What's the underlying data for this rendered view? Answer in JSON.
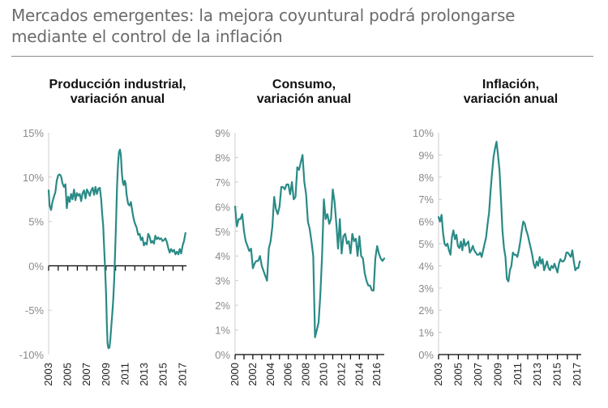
{
  "page": {
    "title": "Mercados emergentes: la mejora coyuntural podrá prolongarse mediante el control de la inflación"
  },
  "colors": {
    "line": "#2a8a86",
    "grid": "#cccccc",
    "axis": "#000000",
    "tick_label": "#8a8a8a"
  },
  "chart_data": [
    {
      "type": "line",
      "title": "Producción industrial,\nvariación anual",
      "xlabel": "",
      "ylabel": "",
      "x_ticks": [
        "2003",
        "2005",
        "2007",
        "2009",
        "2011",
        "2013",
        "2015",
        "2017"
      ],
      "y_ticks": [
        "15%",
        "10%",
        "5%",
        "0%",
        "-5%",
        "-10%"
      ],
      "ylim": [
        -10,
        15
      ],
      "xlim": [
        2003.0,
        2017.4
      ],
      "grid": false,
      "series": [
        {
          "x": [
            2003.0,
            2003.1,
            2003.25,
            2003.4,
            2003.55,
            2003.7,
            2003.85,
            2004.0,
            2004.15,
            2004.3,
            2004.45,
            2004.6,
            2004.75,
            2004.9,
            2005.05,
            2005.2,
            2005.35,
            2005.5,
            2005.65,
            2005.8,
            2005.95,
            2006.1,
            2006.25,
            2006.4,
            2006.55,
            2006.7,
            2006.85,
            2007.0,
            2007.15,
            2007.3,
            2007.45,
            2007.6,
            2007.75,
            2007.9,
            2008.05,
            2008.2,
            2008.35,
            2008.5,
            2008.6,
            2008.7,
            2008.8,
            2008.9,
            2009.0,
            2009.08,
            2009.16,
            2009.25,
            2009.35,
            2009.45,
            2009.55,
            2009.65,
            2009.75,
            2009.85,
            2009.95,
            2010.05,
            2010.15,
            2010.25,
            2010.35,
            2010.45,
            2010.55,
            2010.65,
            2010.75,
            2010.85,
            2010.95,
            2011.05,
            2011.15,
            2011.3,
            2011.45,
            2011.6,
            2011.75,
            2011.9,
            2012.05,
            2012.2,
            2012.35,
            2012.5,
            2012.65,
            2012.8,
            2012.95,
            2013.1,
            2013.25,
            2013.4,
            2013.55,
            2013.7,
            2013.85,
            2014.0,
            2014.15,
            2014.3,
            2014.45,
            2014.6,
            2014.75,
            2014.9,
            2015.05,
            2015.2,
            2015.35,
            2015.5,
            2015.65,
            2015.8,
            2015.95,
            2016.1,
            2016.25,
            2016.4,
            2016.55,
            2016.7,
            2016.85,
            2017.0,
            2017.15,
            2017.3
          ],
          "y": [
            8.5,
            6.8,
            6.3,
            7.2,
            7.8,
            8.3,
            9.6,
            10.2,
            10.3,
            10.1,
            9.3,
            8.9,
            9.2,
            6.5,
            7.8,
            7.2,
            8.1,
            7.5,
            8.6,
            7.4,
            8.2,
            7.9,
            8.1,
            7.3,
            8.2,
            8.5,
            7.6,
            8.6,
            8.3,
            7.9,
            8.5,
            8.8,
            8.0,
            8.9,
            8.1,
            8.7,
            8.8,
            7.4,
            5.8,
            4.5,
            2.0,
            -0.5,
            -3.0,
            -6.5,
            -8.8,
            -9.3,
            -9.2,
            -8.3,
            -6.8,
            -5.4,
            -3.8,
            -1.5,
            1.5,
            5.0,
            9.0,
            11.5,
            12.8,
            13.1,
            12.5,
            10.5,
            9.4,
            9.1,
            9.6,
            9.3,
            8.0,
            7.0,
            6.8,
            7.2,
            6.1,
            5.2,
            4.7,
            4.3,
            3.5,
            3.6,
            2.9,
            3.2,
            2.3,
            2.6,
            2.4,
            3.6,
            3.3,
            2.6,
            2.8,
            2.5,
            3.4,
            3.0,
            3.2,
            3.0,
            3.1,
            2.8,
            2.9,
            3.1,
            2.7,
            2.0,
            1.5,
            1.9,
            1.6,
            1.8,
            1.3,
            1.6,
            1.3,
            1.9,
            1.4,
            2.3,
            2.8,
            3.7
          ]
        }
      ]
    },
    {
      "type": "line",
      "title": "Consumo,\nvariación anual",
      "xlabel": "",
      "ylabel": "",
      "x_ticks": [
        "2000",
        "2002",
        "2004",
        "2006",
        "2008",
        "2010",
        "2012",
        "2014",
        "2016"
      ],
      "y_ticks": [
        "9%",
        "8%",
        "7%",
        "6%",
        "5%",
        "4%",
        "3%",
        "2%",
        "1%",
        "0%"
      ],
      "ylim": [
        0,
        9
      ],
      "xlim": [
        2000.0,
        2016.8
      ],
      "grid": false,
      "series": [
        {
          "x": [
            2000.0,
            2000.2,
            2000.4,
            2000.6,
            2000.8,
            2001.0,
            2001.2,
            2001.4,
            2001.6,
            2001.8,
            2002.0,
            2002.2,
            2002.4,
            2002.6,
            2002.8,
            2003.0,
            2003.2,
            2003.4,
            2003.6,
            2003.8,
            2004.0,
            2004.2,
            2004.4,
            2004.6,
            2004.8,
            2005.0,
            2005.2,
            2005.4,
            2005.6,
            2005.8,
            2006.0,
            2006.2,
            2006.4,
            2006.6,
            2006.8,
            2007.0,
            2007.2,
            2007.4,
            2007.6,
            2007.8,
            2008.0,
            2008.2,
            2008.4,
            2008.6,
            2008.8,
            2009.0,
            2009.2,
            2009.4,
            2009.6,
            2009.8,
            2010.0,
            2010.2,
            2010.4,
            2010.6,
            2010.8,
            2011.0,
            2011.2,
            2011.4,
            2011.6,
            2011.8,
            2012.0,
            2012.2,
            2012.4,
            2012.6,
            2012.8,
            2013.0,
            2013.2,
            2013.4,
            2013.6,
            2013.8,
            2014.0,
            2014.2,
            2014.4,
            2014.6,
            2014.8,
            2015.0,
            2015.2,
            2015.4,
            2015.6,
            2015.8,
            2016.0,
            2016.2,
            2016.4,
            2016.6,
            2016.8
          ],
          "y": [
            6.0,
            5.2,
            5.5,
            5.5,
            5.7,
            5.0,
            4.6,
            4.4,
            4.2,
            4.3,
            3.5,
            3.7,
            3.8,
            3.8,
            4.0,
            3.6,
            3.4,
            3.2,
            3.0,
            4.3,
            4.6,
            5.2,
            6.4,
            5.9,
            5.7,
            6.0,
            6.8,
            6.8,
            6.7,
            6.9,
            6.9,
            6.5,
            7.0,
            6.3,
            6.4,
            7.6,
            7.5,
            7.8,
            8.1,
            7.0,
            6.5,
            5.4,
            5.1,
            4.6,
            4.0,
            0.7,
            1.0,
            1.3,
            2.4,
            4.0,
            6.3,
            5.5,
            5.7,
            5.3,
            5.5,
            6.7,
            6.2,
            5.3,
            4.3,
            5.5,
            4.1,
            4.8,
            4.9,
            4.5,
            4.6,
            4.1,
            4.9,
            4.6,
            4.7,
            4.0,
            4.8,
            4.0,
            3.9,
            3.3,
            3.0,
            2.8,
            2.8,
            2.6,
            2.6,
            3.9,
            4.4,
            4.1,
            3.9,
            3.8,
            3.9
          ]
        }
      ]
    },
    {
      "type": "line",
      "title": "Inflación,\nvariación anual",
      "xlabel": "",
      "ylabel": "",
      "x_ticks": [
        "2003",
        "2005",
        "2007",
        "2009",
        "2011",
        "2013",
        "2015",
        "2017"
      ],
      "y_ticks": [
        "10%",
        "9%",
        "8%",
        "7%",
        "6%",
        "5%",
        "4%",
        "3%",
        "2%",
        "1%",
        "0%"
      ],
      "ylim": [
        0,
        10
      ],
      "xlim": [
        2003.0,
        2017.4
      ],
      "grid": false,
      "series": [
        {
          "x": [
            2003.0,
            2003.15,
            2003.3,
            2003.45,
            2003.6,
            2003.75,
            2003.9,
            2004.05,
            2004.2,
            2004.35,
            2004.5,
            2004.65,
            2004.8,
            2004.95,
            2005.1,
            2005.25,
            2005.4,
            2005.55,
            2005.7,
            2005.85,
            2006.0,
            2006.15,
            2006.3,
            2006.45,
            2006.6,
            2006.75,
            2006.9,
            2007.05,
            2007.2,
            2007.35,
            2007.5,
            2007.65,
            2007.8,
            2007.95,
            2008.1,
            2008.25,
            2008.4,
            2008.55,
            2008.7,
            2008.85,
            2009.0,
            2009.15,
            2009.3,
            2009.45,
            2009.6,
            2009.75,
            2009.9,
            2010.05,
            2010.2,
            2010.35,
            2010.5,
            2010.65,
            2010.8,
            2010.95,
            2011.1,
            2011.25,
            2011.4,
            2011.55,
            2011.7,
            2011.85,
            2012.0,
            2012.15,
            2012.3,
            2012.45,
            2012.6,
            2012.75,
            2012.9,
            2013.05,
            2013.2,
            2013.35,
            2013.5,
            2013.65,
            2013.8,
            2013.95,
            2014.1,
            2014.25,
            2014.4,
            2014.55,
            2014.7,
            2014.85,
            2015.0,
            2015.15,
            2015.3,
            2015.45,
            2015.6,
            2015.75,
            2015.9,
            2016.05,
            2016.2,
            2016.35,
            2016.5,
            2016.65,
            2016.8,
            2016.95,
            2017.1,
            2017.25
          ],
          "y": [
            6.2,
            6.0,
            6.3,
            5.5,
            5.0,
            4.9,
            5.0,
            4.7,
            4.5,
            5.3,
            5.6,
            5.2,
            5.4,
            4.9,
            4.8,
            5.1,
            4.7,
            5.2,
            4.9,
            5.0,
            5.1,
            4.6,
            4.7,
            4.9,
            4.7,
            4.6,
            4.5,
            4.5,
            4.6,
            4.4,
            4.7,
            5.0,
            5.3,
            5.9,
            6.4,
            7.4,
            8.2,
            8.9,
            9.3,
            9.6,
            9.0,
            8.3,
            7.0,
            5.6,
            4.8,
            4.4,
            3.4,
            3.3,
            3.8,
            4.0,
            4.6,
            4.5,
            4.5,
            4.4,
            4.7,
            5.1,
            5.6,
            6.0,
            5.9,
            5.6,
            5.4,
            5.1,
            4.8,
            4.5,
            4.1,
            3.9,
            4.2,
            4.0,
            4.4,
            4.1,
            4.3,
            3.8,
            4.0,
            4.2,
            3.9,
            3.8,
            4.0,
            3.9,
            4.1,
            3.9,
            3.7,
            4.1,
            4.3,
            4.2,
            4.2,
            4.3,
            4.6,
            4.6,
            4.5,
            4.4,
            4.7,
            4.2,
            3.8,
            3.9,
            3.9,
            4.2
          ]
        }
      ]
    }
  ]
}
